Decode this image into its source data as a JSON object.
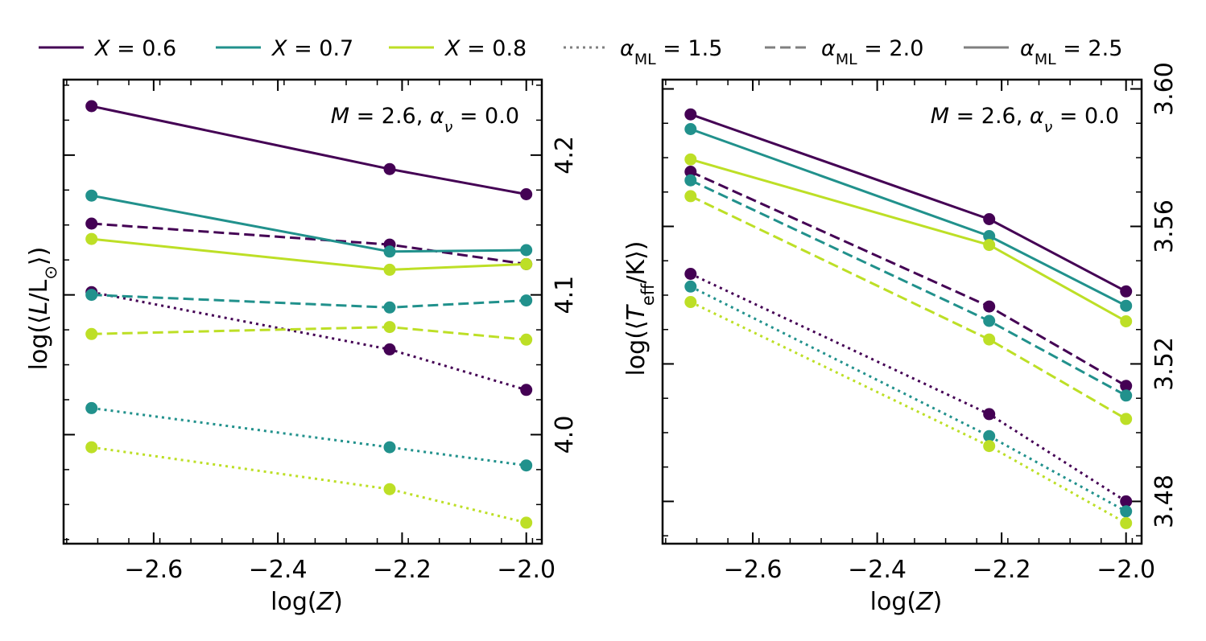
{
  "legend": [
    {
      "label": "X = 0.6",
      "color": "#440154",
      "dash": "solid"
    },
    {
      "label": "X = 0.7",
      "color": "#21918c",
      "dash": "solid"
    },
    {
      "label": "X = 0.8",
      "color": "#bddf26",
      "dash": "solid"
    },
    {
      "label": "α_ML = 1.5",
      "color": "#808080",
      "dash": "dotted"
    },
    {
      "label": "α_ML = 2.0",
      "color": "#808080",
      "dash": "dashed"
    },
    {
      "label": "α_ML = 2.5",
      "color": "#808080",
      "dash": "solid"
    }
  ],
  "chart_data": [
    {
      "type": "line",
      "annotation": "M = 2.6, α_ν = 0.0",
      "xlabel": "log(Z)",
      "ylabel": "log(⟨L/L⊙⟩)",
      "x": [
        -2.7,
        -2.22,
        -2.0
      ],
      "xlim": [
        -2.745,
        -1.975
      ],
      "ylim": [
        3.922,
        4.254
      ],
      "xticks": [
        -2.6,
        -2.4,
        -2.2,
        -2.0
      ],
      "xticklabels": [
        "−2.6",
        "−2.4",
        "−2.2",
        "−2.0"
      ],
      "yticks": [
        4.0,
        4.1,
        4.2
      ],
      "yticklabels": [
        "4.0",
        "4.1",
        "4.2"
      ],
      "y_axis_side": "right",
      "series": [
        {
          "X": "0.6",
          "alpha_ML": "2.5",
          "color": "#440154",
          "dash": "solid",
          "values": [
            4.235,
            4.19,
            4.172
          ]
        },
        {
          "X": "0.7",
          "alpha_ML": "2.5",
          "color": "#21918c",
          "dash": "solid",
          "values": [
            4.171,
            4.131,
            4.132
          ]
        },
        {
          "X": "0.8",
          "alpha_ML": "2.5",
          "color": "#bddf26",
          "dash": "solid",
          "values": [
            4.14,
            4.118,
            4.122
          ]
        },
        {
          "X": "0.6",
          "alpha_ML": "2.0",
          "color": "#440154",
          "dash": "dashed",
          "values": [
            4.151,
            4.136,
            4.122
          ]
        },
        {
          "X": "0.7",
          "alpha_ML": "2.0",
          "color": "#21918c",
          "dash": "dashed",
          "values": [
            4.1,
            4.091,
            4.096
          ]
        },
        {
          "X": "0.8",
          "alpha_ML": "2.0",
          "color": "#bddf26",
          "dash": "dashed",
          "values": [
            4.072,
            4.077,
            4.068
          ]
        },
        {
          "X": "0.6",
          "alpha_ML": "1.5",
          "color": "#440154",
          "dash": "dotted",
          "values": [
            4.102,
            4.061,
            4.032
          ]
        },
        {
          "X": "0.7",
          "alpha_ML": "1.5",
          "color": "#21918c",
          "dash": "dotted",
          "values": [
            4.019,
            3.991,
            3.978
          ]
        },
        {
          "X": "0.8",
          "alpha_ML": "1.5",
          "color": "#bddf26",
          "dash": "dotted",
          "values": [
            3.991,
            3.961,
            3.937
          ]
        }
      ]
    },
    {
      "type": "line",
      "annotation": "M = 2.6, α_ν = 0.0",
      "xlabel": "log(Z)",
      "ylabel": "log(⟨T_eff/K⟩)",
      "x": [
        -2.7,
        -2.22,
        -2.0
      ],
      "xlim": [
        -2.745,
        -1.975
      ],
      "ylim": [
        3.4677,
        3.6027
      ],
      "xticks": [
        -2.6,
        -2.4,
        -2.2,
        -2.0
      ],
      "xticklabels": [
        "−2.6",
        "−2.4",
        "−2.2",
        "−2.0"
      ],
      "yticks": [
        3.48,
        3.52,
        3.56,
        3.6
      ],
      "yticklabels": [
        "3.48",
        "3.52",
        "3.56",
        "3.60"
      ],
      "y_axis_side": "right",
      "series": [
        {
          "X": "0.6",
          "alpha_ML": "2.5",
          "color": "#440154",
          "dash": "solid",
          "values": [
            3.5926,
            3.5621,
            3.5411
          ]
        },
        {
          "X": "0.7",
          "alpha_ML": "2.5",
          "color": "#21918c",
          "dash": "solid",
          "values": [
            3.5883,
            3.5572,
            3.5369
          ]
        },
        {
          "X": "0.8",
          "alpha_ML": "2.5",
          "color": "#bddf26",
          "dash": "solid",
          "values": [
            3.5795,
            3.5546,
            3.5324
          ]
        },
        {
          "X": "0.6",
          "alpha_ML": "2.0",
          "color": "#440154",
          "dash": "dashed",
          "values": [
            3.5759,
            3.5367,
            3.5136
          ]
        },
        {
          "X": "0.7",
          "alpha_ML": "2.0",
          "color": "#21918c",
          "dash": "dashed",
          "values": [
            3.5734,
            3.5325,
            3.5108
          ]
        },
        {
          "X": "0.8",
          "alpha_ML": "2.0",
          "color": "#bddf26",
          "dash": "dashed",
          "values": [
            3.5688,
            3.5271,
            3.504
          ]
        },
        {
          "X": "0.6",
          "alpha_ML": "1.5",
          "color": "#440154",
          "dash": "dotted",
          "values": [
            3.5462,
            3.5054,
            3.48
          ]
        },
        {
          "X": "0.7",
          "alpha_ML": "1.5",
          "color": "#21918c",
          "dash": "dotted",
          "values": [
            3.5425,
            3.499,
            3.4771
          ]
        },
        {
          "X": "0.8",
          "alpha_ML": "1.5",
          "color": "#bddf26",
          "dash": "dotted",
          "values": [
            3.538,
            3.4961,
            3.4737
          ]
        }
      ]
    }
  ]
}
